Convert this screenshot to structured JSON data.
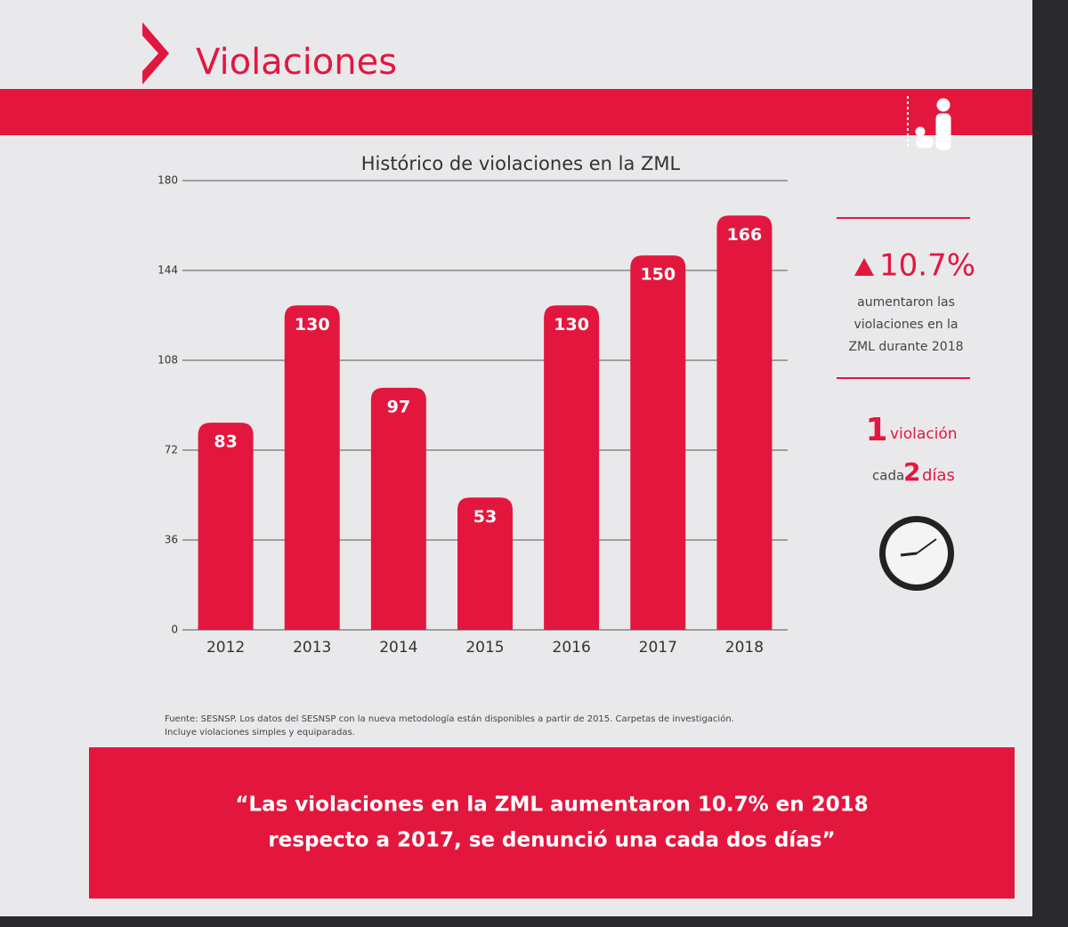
{
  "header": {
    "title": "Violaciones"
  },
  "chart_data": {
    "type": "bar",
    "title": "Histórico de violaciones en la ZML",
    "categories": [
      "2012",
      "2013",
      "2014",
      "2015",
      "2016",
      "2017",
      "2018"
    ],
    "values": [
      83,
      130,
      97,
      53,
      130,
      150,
      166
    ],
    "color": "#e3173e",
    "ylim": [
      0,
      180
    ],
    "yticks": [
      0,
      36,
      72,
      108,
      144,
      180
    ],
    "grid": true
  },
  "sidebar": {
    "change": "10.7%",
    "change_text": [
      "aumentaron las",
      "violaciones en la",
      "ZML durante 2018"
    ],
    "rate_count": "1",
    "rate_unit": "violación",
    "rate_prefix": "cada",
    "rate_days": "2",
    "rate_days_unit": "días"
  },
  "source": [
    "Fuente: SESNSP. Los datos del SESNSP con la nueva metodología están disponibles a partir de 2015. Carpetas de investigación.",
    "Incluye violaciones simples y equiparadas."
  ],
  "quote": [
    "“Las violaciones en la ZML aumentaron 10.7% en 2018",
    "respecto a 2017, se denunció una cada dos días”"
  ]
}
